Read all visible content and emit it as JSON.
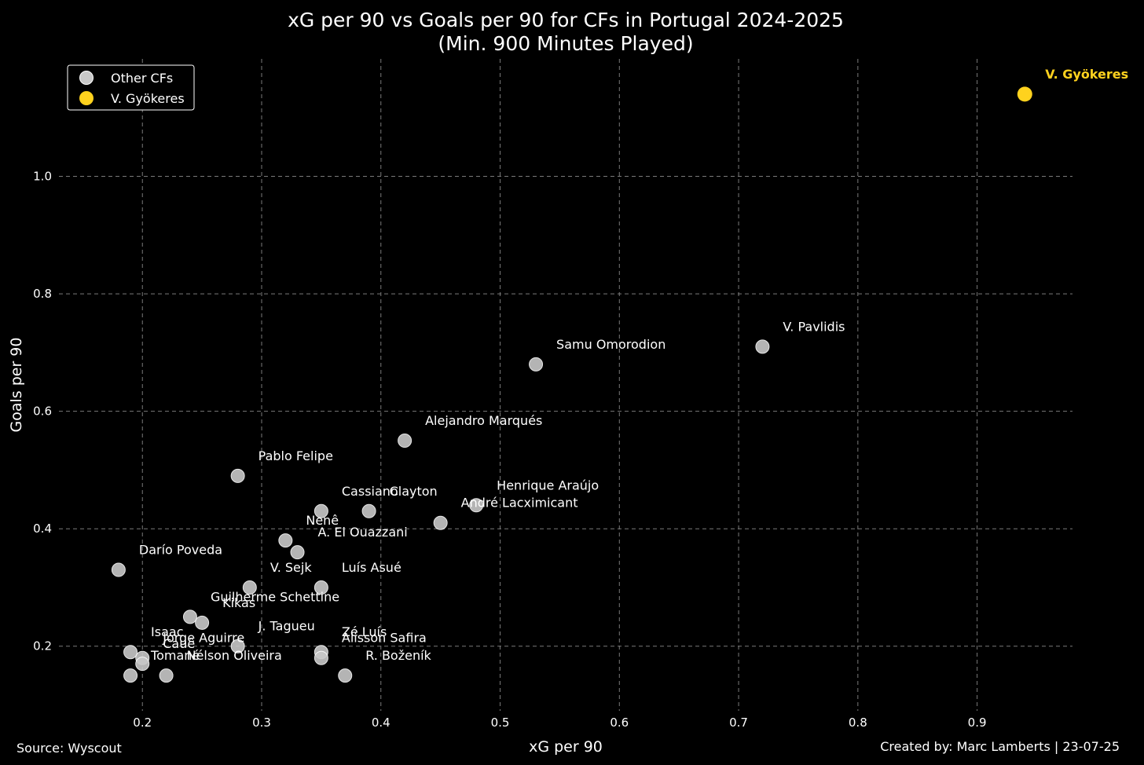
{
  "chart_data": {
    "type": "scatter",
    "title": "xG per 90 vs Goals per 90 for CFs in Portugal 2024-2025",
    "subtitle": "(Min. 900 Minutes Played)",
    "xlabel": "xG per 90",
    "ylabel": "Goals per 90",
    "xlim": [
      0.13,
      0.98
    ],
    "ylim": [
      0.09,
      1.2
    ],
    "x_ticks": [
      0.2,
      0.3,
      0.4,
      0.5,
      0.6,
      0.7,
      0.8,
      0.9
    ],
    "y_ticks": [
      0.2,
      0.4,
      0.6,
      0.8,
      1.0
    ],
    "grid": true,
    "legend_position": "top-left",
    "colors": {
      "other": "#c8c8c8",
      "highlight": "#ffd21e",
      "grid": "#7a7a7a",
      "background": "#000000"
    },
    "series": [
      {
        "name": "Other CFs",
        "points": [
          {
            "label": "V. Pavlidis",
            "x": 0.72,
            "y": 0.71
          },
          {
            "label": "Samu Omorodion",
            "x": 0.53,
            "y": 0.68
          },
          {
            "label": "Alejandro Marqués",
            "x": 0.42,
            "y": 0.55
          },
          {
            "label": "Pablo Felipe",
            "x": 0.28,
            "y": 0.49
          },
          {
            "label": "Henrique Araújo",
            "x": 0.48,
            "y": 0.44
          },
          {
            "label": "André Lacximicant",
            "x": 0.45,
            "y": 0.41
          },
          {
            "label": "Clayton",
            "x": 0.39,
            "y": 0.43
          },
          {
            "label": "Cassiano",
            "x": 0.35,
            "y": 0.43
          },
          {
            "label": "Nenê",
            "x": 0.32,
            "y": 0.38
          },
          {
            "label": "A. El Ouazzani",
            "x": 0.33,
            "y": 0.36
          },
          {
            "label": "Darío Poveda",
            "x": 0.18,
            "y": 0.33
          },
          {
            "label": "V. Sejk",
            "x": 0.29,
            "y": 0.3
          },
          {
            "label": "Luís Asué",
            "x": 0.35,
            "y": 0.3
          },
          {
            "label": "Guilherme Schettine",
            "x": 0.24,
            "y": 0.25
          },
          {
            "label": "Kikas",
            "x": 0.25,
            "y": 0.24
          },
          {
            "label": "J. Tagueu",
            "x": 0.28,
            "y": 0.2
          },
          {
            "label": "Zé Luís",
            "x": 0.35,
            "y": 0.19
          },
          {
            "label": "Alisson Safira",
            "x": 0.35,
            "y": 0.18
          },
          {
            "label": "R. Boženík",
            "x": 0.37,
            "y": 0.15
          },
          {
            "label": "Isaac",
            "x": 0.19,
            "y": 0.19
          },
          {
            "label": "Jorge Aguirre",
            "x": 0.2,
            "y": 0.18
          },
          {
            "label": "Cauê",
            "x": 0.2,
            "y": 0.17
          },
          {
            "label": "Tomané",
            "x": 0.19,
            "y": 0.15
          },
          {
            "label": "Nélson Oliveira",
            "x": 0.22,
            "y": 0.15
          }
        ]
      },
      {
        "name": "V. Gyökeres",
        "points": [
          {
            "label": "V. Gyökeres",
            "x": 0.94,
            "y": 1.14
          }
        ]
      }
    ]
  },
  "footer": {
    "source": "Source: Wyscout",
    "credit": "Created by: Marc Lamberts | 23-07-25"
  }
}
